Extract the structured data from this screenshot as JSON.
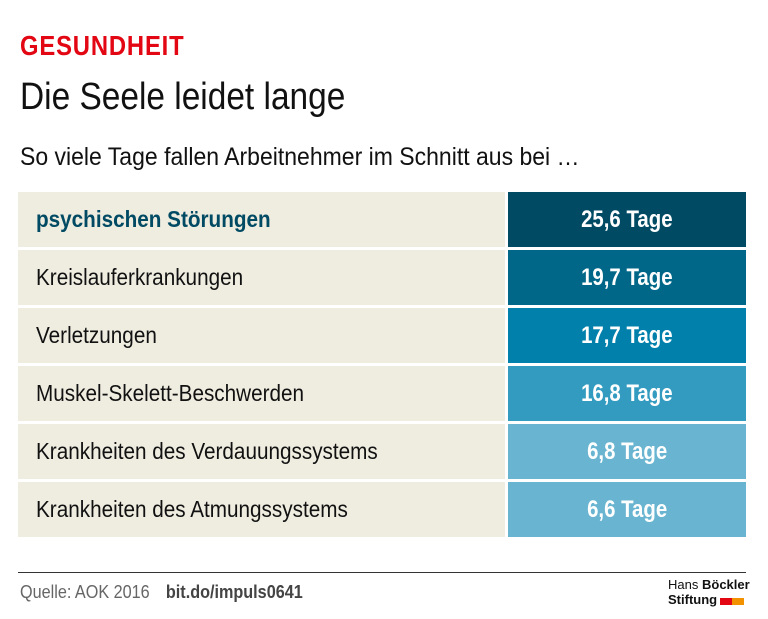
{
  "kicker": "GESUNDHEIT",
  "title": "Die Seele leidet lange",
  "subtitle": "So viele Tage fallen Arbeitnehmer im Schnitt aus bei …",
  "chart_data": {
    "type": "table",
    "unit": "Tage",
    "rows": [
      {
        "label": "psychischen Störungen",
        "value": 25.6,
        "text": "25,6 Tage",
        "color": "#004a63"
      },
      {
        "label": "Kreislauferkrankungen",
        "value": 19.7,
        "text": "19,7 Tage",
        "color": "#006789"
      },
      {
        "label": "Verletzungen",
        "value": 17.7,
        "text": "17,7 Tage",
        "color": "#0080ab"
      },
      {
        "label": "Muskel-Skelett-Beschwerden",
        "value": 16.8,
        "text": "16,8 Tage",
        "color": "#339bc0"
      },
      {
        "label": "Krankheiten des Verdauungssystems",
        "value": 6.8,
        "text": "6,8 Tage",
        "color": "#68b4d1"
      },
      {
        "label": "Krankheiten des Atmungssystems",
        "value": 6.6,
        "text": "6,6 Tage",
        "color": "#68b4d1"
      }
    ]
  },
  "footer": {
    "source": "Quelle: AOK 2016",
    "link": "bit.do/impuls0641"
  },
  "logo": {
    "line1a": "Hans",
    "line1b": "Böckler",
    "line2": "Stiftung",
    "colors": [
      "#e30613",
      "#f39200"
    ]
  }
}
